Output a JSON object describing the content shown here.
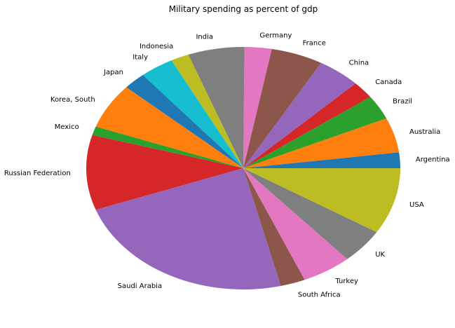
{
  "chart_data": {
    "type": "pie",
    "title": "Military spending as percent of gdp",
    "start_angle_deg": 0,
    "direction": "counterclockwise",
    "slices": [
      {
        "label": "Argentina",
        "value": 0.9,
        "color": "#1f77b4"
      },
      {
        "label": "Australia",
        "value": 2.0,
        "color": "#ff7f0e"
      },
      {
        "label": "Brazil",
        "value": 1.4,
        "color": "#2ca02c"
      },
      {
        "label": "Canada",
        "value": 1.0,
        "color": "#d62728"
      },
      {
        "label": "China",
        "value": 1.9,
        "color": "#9467bd"
      },
      {
        "label": "France",
        "value": 2.3,
        "color": "#8c564b"
      },
      {
        "label": "Germany",
        "value": 1.2,
        "color": "#e377c2"
      },
      {
        "label": "India",
        "value": 2.5,
        "color": "#7f7f7f"
      },
      {
        "label": "Indonesia",
        "value": 0.8,
        "color": "#bcbd22"
      },
      {
        "label": "Italy",
        "value": 1.5,
        "color": "#17becf"
      },
      {
        "label": "Japan",
        "value": 1.0,
        "color": "#1f77b4"
      },
      {
        "label": "Korea, South",
        "value": 2.6,
        "color": "#ff7f0e"
      },
      {
        "label": "Mexico",
        "value": 0.5,
        "color": "#2ca02c"
      },
      {
        "label": "Russian Federation",
        "value": 4.3,
        "color": "#d62728"
      },
      {
        "label": "Saudi Arabia",
        "value": 10.0,
        "color": "#9467bd"
      },
      {
        "label": "South Africa",
        "value": 1.1,
        "color": "#8c564b"
      },
      {
        "label": "Turkey",
        "value": 2.2,
        "color": "#e377c2"
      },
      {
        "label": "UK",
        "value": 2.0,
        "color": "#7f7f7f"
      },
      {
        "label": "USA",
        "value": 3.8,
        "color": "#bcbd22"
      }
    ]
  }
}
